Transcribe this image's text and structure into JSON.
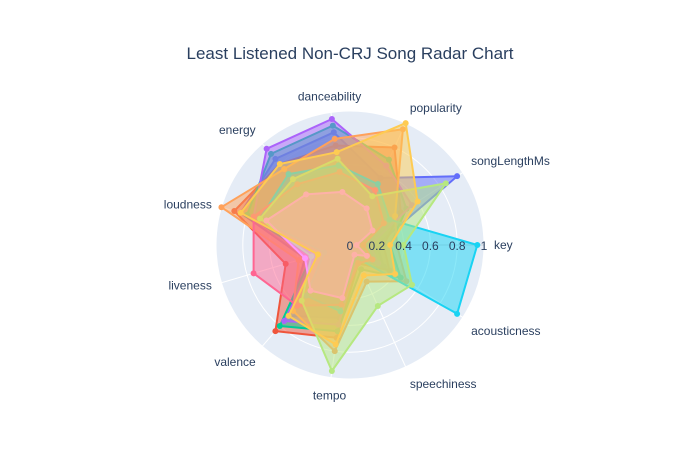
{
  "chart_data": {
    "type": "radar",
    "title": "Least Listened Non-CRJ Song Radar Chart",
    "axes": [
      "key",
      "songLengthMs",
      "popularity",
      "danceability",
      "energy",
      "loudness",
      "liveness",
      "valence",
      "tempo",
      "speechiness",
      "acousticness"
    ],
    "radial_range": [
      0,
      1
    ],
    "radial_ticks": [
      "0",
      "0.2",
      "0.4",
      "0.6",
      "0.8",
      "1"
    ],
    "colors": {
      "background": "#e5ecf6",
      "grid": "#ffffff",
      "text": "#2a3f5f"
    },
    "series": [
      {
        "color": "#636efa",
        "values": [
          0.2,
          0.95,
          0.55,
          0.85,
          0.85,
          0.85,
          0.35,
          0.7,
          0.55,
          0.1,
          0.3
        ]
      },
      {
        "color": "#ef553b",
        "values": [
          0.25,
          0.45,
          0.8,
          0.75,
          0.8,
          0.9,
          0.5,
          0.85,
          0.7,
          0.15,
          0.35
        ]
      },
      {
        "color": "#00cc96",
        "values": [
          0.3,
          0.5,
          0.7,
          0.9,
          0.9,
          0.8,
          0.3,
          0.8,
          0.65,
          0.2,
          0.45
        ]
      },
      {
        "color": "#ab63fa",
        "values": [
          0.15,
          0.55,
          0.65,
          0.95,
          0.95,
          0.75,
          0.25,
          0.75,
          0.6,
          0.12,
          0.25
        ]
      },
      {
        "color": "#ffa15a",
        "values": [
          0.35,
          0.4,
          0.95,
          0.8,
          0.75,
          1.0,
          0.4,
          0.65,
          0.8,
          0.3,
          0.5
        ]
      },
      {
        "color": "#19d3f3",
        "values": [
          0.95,
          0.35,
          0.5,
          0.6,
          0.7,
          0.7,
          0.2,
          0.5,
          0.5,
          0.1,
          0.95
        ]
      },
      {
        "color": "#ff6692",
        "values": [
          0.1,
          0.3,
          0.45,
          0.55,
          0.6,
          0.75,
          0.75,
          0.6,
          0.45,
          0.15,
          0.2
        ]
      },
      {
        "color": "#b6e880",
        "values": [
          0.4,
          0.85,
          0.4,
          0.65,
          0.65,
          0.7,
          0.3,
          0.55,
          0.95,
          0.5,
          0.55
        ]
      },
      {
        "color": "#ff97ff",
        "values": [
          0.05,
          0.2,
          0.3,
          0.4,
          0.5,
          0.65,
          0.35,
          0.45,
          0.4,
          0.08,
          0.15
        ]
      },
      {
        "color": "#fecb52",
        "values": [
          0.3,
          0.6,
          1.0,
          0.7,
          0.8,
          0.85,
          0.25,
          0.7,
          0.75,
          0.25,
          0.4
        ]
      }
    ]
  }
}
